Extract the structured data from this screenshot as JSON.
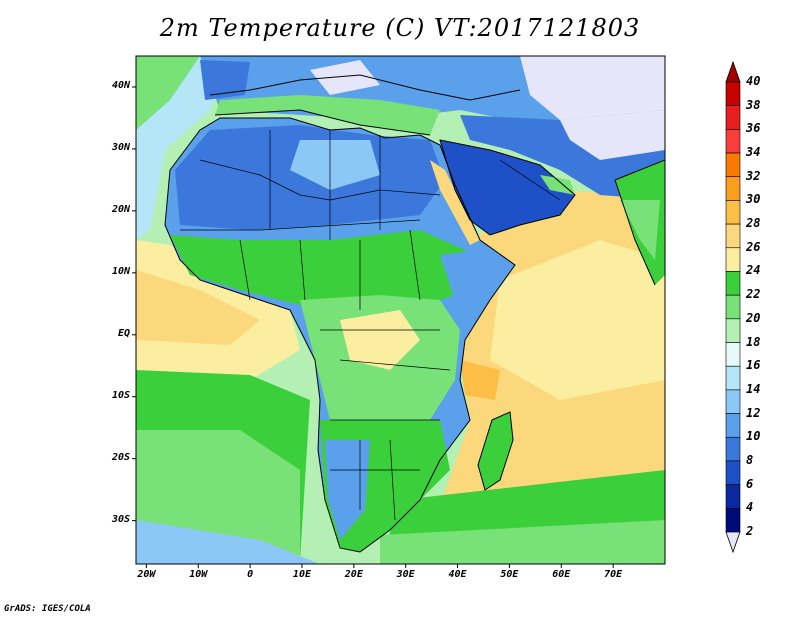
{
  "title": "2m Temperature (C) VT:2017121803",
  "credit": "GrADS: IGES/COLA",
  "axes": {
    "lat_labels": [
      "40N",
      "30N",
      "20N",
      "10N",
      "EQ",
      "10S",
      "20S",
      "30S"
    ],
    "lat_values": [
      40,
      30,
      20,
      10,
      0,
      -10,
      -20,
      -30
    ],
    "lon_labels": [
      "20W",
      "10W",
      "0",
      "10E",
      "20E",
      "30E",
      "40E",
      "50E",
      "60E",
      "70E"
    ],
    "lon_values": [
      -20,
      -10,
      0,
      10,
      20,
      30,
      40,
      50,
      60,
      70
    ],
    "lon_range": [
      -22,
      80
    ],
    "lat_range": [
      -37,
      45
    ]
  },
  "colorbar": {
    "levels": [
      "40",
      "38",
      "36",
      "34",
      "32",
      "30",
      "28",
      "26",
      "24",
      "22",
      "20",
      "18",
      "16",
      "14",
      "12",
      "10",
      "8",
      "6",
      "4",
      "2"
    ],
    "colors_top_to_bottom": [
      "#a00000",
      "#c80000",
      "#e81e1e",
      "#fa3c3c",
      "#f87a00",
      "#fa9e1e",
      "#fcbe46",
      "#fcd87c",
      "#fceea0",
      "#3ccf3c",
      "#78e178",
      "#b4f0b4",
      "#e6fafa",
      "#b4e6f8",
      "#8cc8f5",
      "#5aa0eb",
      "#3c78dc",
      "#1e50c8",
      "#0a28a0",
      "#000a78"
    ],
    "top_arrow_color": "#a00000",
    "bottom_arrow_color": "#e6e6fa"
  }
}
